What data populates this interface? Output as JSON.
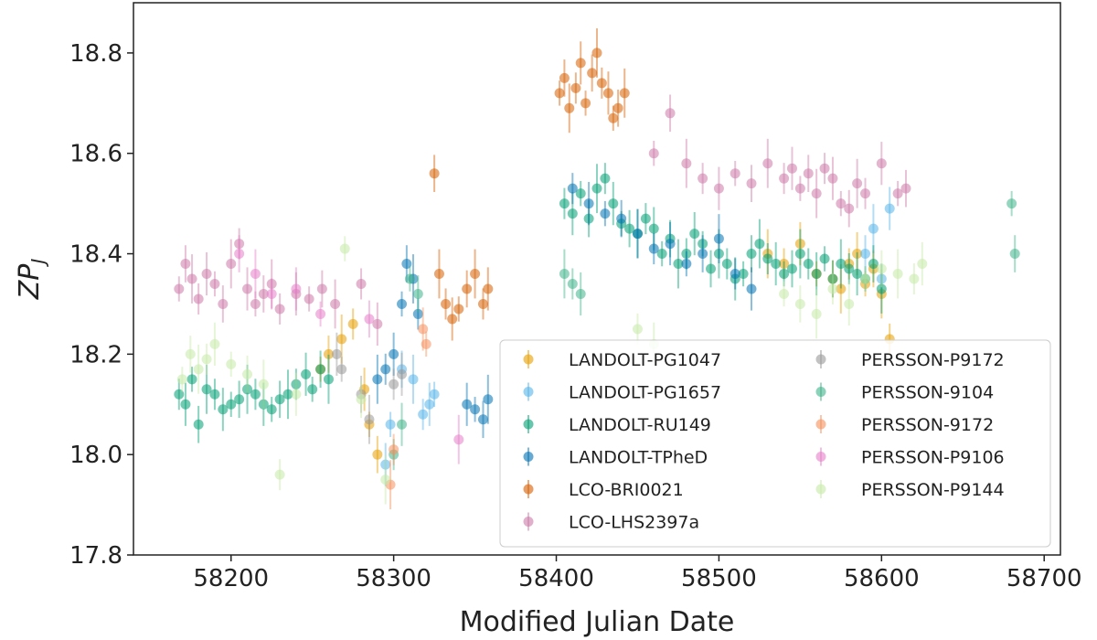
{
  "chart_data": {
    "type": "scatter",
    "title": "",
    "xlabel": "Modified Julian Date",
    "ylabel": "ZP",
    "ylabel_subscript": "J",
    "xlim": [
      58140,
      58710
    ],
    "ylim": [
      17.8,
      18.9
    ],
    "xticks": [
      "58200",
      "58300",
      "58400",
      "58500",
      "58600",
      "58700"
    ],
    "yticks": [
      "17.8",
      "18.0",
      "18.2",
      "18.4",
      "18.6",
      "18.8"
    ],
    "grid": false,
    "legend_position": "lower-right",
    "series": [
      {
        "name": "LANDOLT-PG1047",
        "color": "#e69f00",
        "x": [
          58255,
          58260,
          58268,
          58275,
          58282,
          58285,
          58290,
          58530,
          58540,
          58550,
          58560,
          58570,
          58575,
          58580,
          58585,
          58590,
          58595,
          58600,
          58605
        ],
        "y": [
          18.17,
          18.2,
          18.23,
          18.26,
          18.13,
          18.06,
          18.0,
          18.4,
          18.38,
          18.42,
          18.36,
          18.35,
          18.33,
          18.38,
          18.4,
          18.34,
          18.37,
          18.32,
          18.23
        ]
      },
      {
        "name": "LANDOLT-PG1657",
        "color": "#56b4e9",
        "x": [
          58295,
          58298,
          58305,
          58312,
          58318,
          58322,
          58325,
          58590,
          58595,
          58600,
          58605
        ],
        "y": [
          17.98,
          18.06,
          18.17,
          18.15,
          18.08,
          18.1,
          18.12,
          18.4,
          18.45,
          18.35,
          18.49
        ]
      },
      {
        "name": "LANDOLT-RU149",
        "color": "#009e73",
        "x": [
          58168,
          58172,
          58176,
          58180,
          58185,
          58190,
          58195,
          58200,
          58205,
          58210,
          58215,
          58220,
          58225,
          58230,
          58235,
          58240,
          58246,
          58250,
          58255,
          58260,
          58405,
          58410,
          58415,
          58420,
          58425,
          58430,
          58435,
          58440,
          58445,
          58450,
          58455,
          58460,
          58465,
          58470,
          58475,
          58480,
          58485,
          58490,
          58495,
          58500,
          58505,
          58510,
          58515,
          58520,
          58525,
          58530,
          58535,
          58540,
          58545,
          58550,
          58555,
          58560,
          58565,
          58570,
          58575,
          58580,
          58585,
          58590,
          58595,
          58600
        ],
        "y": [
          18.12,
          18.1,
          18.15,
          18.06,
          18.13,
          18.12,
          18.09,
          18.1,
          18.11,
          18.13,
          18.12,
          18.1,
          18.09,
          18.11,
          18.12,
          18.14,
          18.16,
          18.13,
          18.17,
          18.15,
          18.5,
          18.48,
          18.52,
          18.47,
          18.53,
          18.55,
          18.5,
          18.46,
          18.45,
          18.44,
          18.47,
          18.45,
          18.4,
          18.43,
          18.38,
          18.4,
          18.44,
          18.42,
          18.37,
          18.4,
          18.38,
          18.35,
          18.36,
          18.4,
          18.42,
          18.39,
          18.38,
          18.36,
          18.37,
          18.4,
          18.38,
          18.36,
          18.39,
          18.35,
          18.38,
          18.37,
          18.36,
          18.35,
          18.38,
          18.33
        ]
      },
      {
        "name": "LANDOLT-TPheD",
        "color": "#0072b2",
        "x": [
          58290,
          58295,
          58300,
          58305,
          58308,
          58312,
          58315,
          58345,
          58350,
          58355,
          58358,
          58410,
          58420,
          58430,
          58440,
          58450,
          58460,
          58470,
          58480,
          58490,
          58500,
          58510,
          58520
        ],
        "y": [
          18.15,
          18.17,
          18.2,
          18.3,
          18.38,
          18.35,
          18.28,
          18.1,
          18.09,
          18.07,
          18.11,
          18.53,
          18.5,
          18.48,
          18.47,
          18.44,
          18.41,
          18.42,
          18.38,
          18.4,
          18.43,
          18.36,
          18.33
        ]
      },
      {
        "name": "LCO-BRI0021",
        "color": "#d55e00",
        "x": [
          58325,
          58328,
          58332,
          58336,
          58340,
          58345,
          58350,
          58355,
          58358,
          58402,
          58405,
          58408,
          58412,
          58415,
          58418,
          58422,
          58425,
          58428,
          58432,
          58435,
          58438,
          58442
        ],
        "y": [
          18.56,
          18.36,
          18.3,
          18.27,
          18.29,
          18.33,
          18.36,
          18.3,
          18.33,
          18.72,
          18.75,
          18.69,
          18.73,
          18.78,
          18.7,
          18.76,
          18.8,
          18.74,
          18.72,
          18.67,
          18.69,
          18.72
        ]
      },
      {
        "name": "LCO-LHS2397a",
        "color": "#cc79a7",
        "x": [
          58168,
          58172,
          58176,
          58180,
          58185,
          58190,
          58195,
          58200,
          58205,
          58210,
          58215,
          58220,
          58225,
          58230,
          58240,
          58248,
          58256,
          58264,
          58280,
          58290,
          58460,
          58470,
          58480,
          58490,
          58500,
          58510,
          58520,
          58530,
          58540,
          58545,
          58550,
          58555,
          58560,
          58565,
          58570,
          58575,
          58580,
          58585,
          58590,
          58600,
          58610,
          58615
        ],
        "y": [
          18.33,
          18.38,
          18.35,
          18.31,
          18.36,
          18.34,
          18.3,
          18.38,
          18.42,
          18.33,
          18.3,
          18.32,
          18.34,
          18.29,
          18.32,
          18.31,
          18.33,
          18.3,
          18.34,
          18.26,
          18.6,
          18.68,
          18.58,
          18.55,
          18.53,
          18.56,
          18.54,
          18.58,
          18.55,
          18.57,
          18.53,
          18.56,
          18.52,
          18.57,
          18.55,
          18.5,
          18.49,
          18.54,
          18.52,
          18.58,
          18.52,
          18.53
        ]
      },
      {
        "name": "PERSSON-P9172",
        "color": "#999999",
        "x": [
          58265,
          58268,
          58280,
          58285,
          58300,
          58305
        ],
        "y": [
          18.2,
          18.17,
          18.12,
          18.07,
          18.14,
          18.16
        ]
      },
      {
        "name": "PERSSON-9104",
        "color": "#3fb38a",
        "x": [
          58300,
          58305,
          58310,
          58315,
          58405,
          58410,
          58415,
          58680,
          58682
        ],
        "y": [
          18.0,
          18.06,
          18.35,
          18.32,
          18.36,
          18.34,
          18.32,
          18.5,
          18.4
        ]
      },
      {
        "name": "PERSSON-9172",
        "color": "#f5905c",
        "x": [
          58298,
          58300,
          58318,
          58320
        ],
        "y": [
          17.94,
          18.01,
          18.25,
          18.22
        ]
      },
      {
        "name": "PERSSON-P9106",
        "color": "#e67ec8",
        "x": [
          58205,
          58215,
          58225,
          58240,
          58255,
          58285,
          58340
        ],
        "y": [
          18.4,
          18.36,
          18.32,
          18.33,
          18.28,
          18.27,
          18.03
        ]
      },
      {
        "name": "PERSSON-P9144",
        "color": "#c7e9a8",
        "x": [
          58170,
          58175,
          58180,
          58185,
          58190,
          58200,
          58210,
          58220,
          58230,
          58240,
          58270,
          58280,
          58295,
          58450,
          58460,
          58540,
          58550,
          58560,
          58570,
          58580,
          58590,
          58600,
          58610,
          58620,
          58625
        ],
        "y": [
          18.15,
          18.2,
          18.17,
          18.19,
          18.22,
          18.18,
          18.16,
          18.14,
          17.96,
          18.12,
          18.41,
          18.11,
          17.95,
          18.25,
          18.22,
          18.32,
          18.3,
          18.28,
          18.33,
          18.3,
          18.35,
          18.37,
          18.36,
          18.35,
          18.38
        ]
      }
    ]
  }
}
